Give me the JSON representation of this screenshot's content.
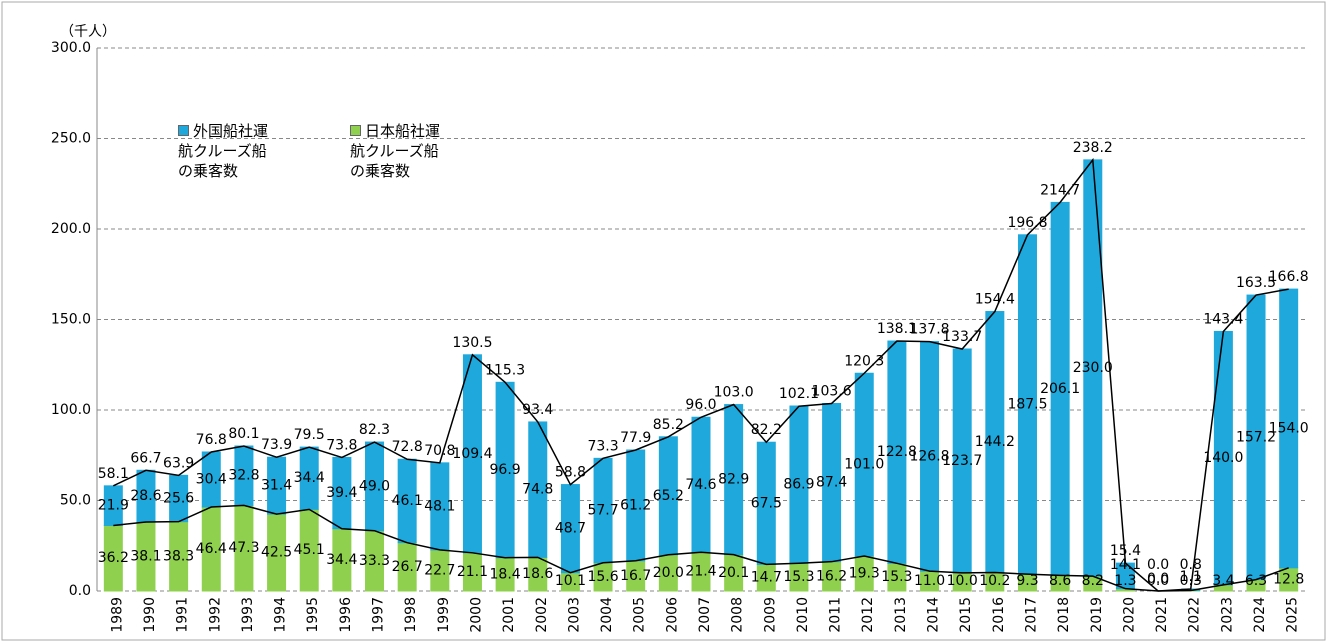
{
  "chart_data": {
    "type": "bar",
    "stacked": true,
    "unit_label": "（千人）",
    "categories": [
      "1989",
      "1990",
      "1991",
      "1992",
      "1993",
      "1994",
      "1995",
      "1996",
      "1997",
      "1998",
      "1999",
      "2000",
      "2001",
      "2002",
      "2003",
      "2004",
      "2005",
      "2006",
      "2007",
      "2008",
      "2009",
      "2010",
      "2011",
      "2012",
      "2013",
      "2014",
      "2015",
      "2016",
      "2017",
      "2018",
      "2019",
      "2020",
      "2021",
      "2022",
      "2023",
      "2024",
      "2025"
    ],
    "series": [
      {
        "name": "日本船社運航クルーズ船の乗客数",
        "color": "#8fd14f",
        "values": [
          36.2,
          38.1,
          38.3,
          46.4,
          47.3,
          42.5,
          45.1,
          34.4,
          33.3,
          26.7,
          22.7,
          21.1,
          18.4,
          18.6,
          10.1,
          15.6,
          16.7,
          20.0,
          21.4,
          20.1,
          14.7,
          15.3,
          16.2,
          19.3,
          15.3,
          11.0,
          10.0,
          10.2,
          9.3,
          8.6,
          8.2,
          1.3,
          0.0,
          0.3,
          3.4,
          6.3,
          12.8
        ],
        "value_labels": [
          "36.2",
          "38.1",
          "38.3",
          "46.4",
          "47.3",
          "42.5",
          "45.1",
          "34.4",
          "33.3",
          "26.7",
          "22.7",
          "21.1",
          "18.4",
          "18.6",
          "10.1",
          "15.6",
          "16.7",
          "20.0",
          "21.4",
          "20.1",
          "14.7",
          "15.3",
          "16.2",
          "19.3",
          "15.3",
          "11.0",
          "10.0",
          "10.2",
          "9.3",
          "8.6",
          "8.2",
          "1.3",
          "0.0",
          "0.3",
          "3.4",
          "6.3",
          "12.8"
        ]
      },
      {
        "name": "外国船社運航クルーズ船の乗客数",
        "color": "#1fa8dc",
        "values": [
          21.9,
          28.6,
          25.6,
          30.4,
          32.8,
          31.4,
          34.4,
          39.4,
          49.0,
          46.1,
          48.1,
          109.4,
          96.9,
          74.8,
          48.7,
          57.7,
          61.2,
          65.2,
          74.6,
          82.9,
          67.5,
          86.9,
          87.4,
          101.0,
          122.8,
          126.8,
          123.7,
          144.2,
          187.5,
          206.1,
          230.0,
          14.1,
          0.0,
          0.8,
          140.0,
          157.2,
          154.0
        ],
        "value_labels": [
          "21.9",
          "28.6",
          "25.6",
          "30.4",
          "32.8",
          "31.4",
          "34.4",
          "39.4",
          "49.0",
          "46.1",
          "48.1",
          "109.4",
          "96.9",
          "74.8",
          "48.7",
          "57.7",
          "61.2",
          "65.2",
          "74.6",
          "82.9",
          "67.5",
          "86.9",
          "87.4",
          "101.0",
          "122.8",
          "126.8",
          "123.7",
          "144.2",
          "187.5",
          "206.1",
          "230.0",
          "14.1",
          "0.0",
          "0.8",
          "140.0",
          "157.2",
          "154.0"
        ]
      }
    ],
    "totals": [
      58.1,
      66.7,
      63.9,
      76.8,
      80.1,
      73.9,
      79.5,
      73.8,
      82.3,
      72.8,
      70.8,
      130.5,
      115.3,
      93.4,
      58.8,
      73.3,
      77.9,
      85.2,
      96.0,
      103.0,
      82.2,
      102.1,
      103.6,
      120.3,
      138.1,
      137.8,
      133.7,
      154.4,
      196.8,
      214.7,
      238.2,
      15.4,
      0.0,
      1.1,
      143.4,
      163.5,
      166.8
    ],
    "total_labels": [
      "58.1",
      "66.7",
      "63.9",
      "76.8",
      "80.1",
      "73.9",
      "79.5",
      "73.8",
      "82.3",
      "72.8",
      "70.8",
      "130.5",
      "115.3",
      "93.4",
      "58.8",
      "73.3",
      "77.9",
      "85.2",
      "96.0",
      "103.0",
      "82.2",
      "102.1",
      "103.6",
      "120.3",
      "138.1",
      "137.8",
      "133.7",
      "154.4",
      "196.8",
      "214.7",
      "238.2",
      "15.4",
      "0.0",
      "1.1",
      "143.4",
      "163.5",
      "166.8"
    ],
    "ylim": [
      0,
      300
    ],
    "yticks": [
      {
        "value": 0,
        "label": "0.0"
      },
      {
        "value": 50,
        "label": "50.0"
      },
      {
        "value": 100,
        "label": "100.0"
      },
      {
        "value": 150,
        "label": "150.0"
      },
      {
        "value": 200,
        "label": "200.0"
      },
      {
        "value": 250,
        "label": "250.0"
      },
      {
        "value": 300,
        "label": "300.0"
      }
    ],
    "grid": true
  }
}
